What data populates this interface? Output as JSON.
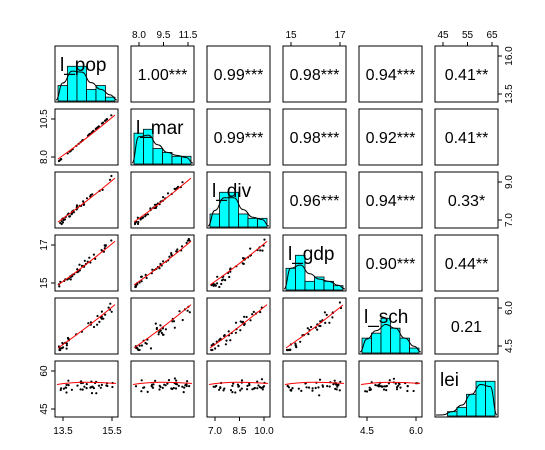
{
  "chart_data": {
    "type": "scatter",
    "title": "",
    "variables": [
      "l_pop",
      "l_mar",
      "l_div",
      "l_gdp",
      "l_sch",
      "lei"
    ],
    "correlations": {
      "pairs": [
        {
          "row": "l_pop",
          "col": "l_mar",
          "label": "1.00***"
        },
        {
          "row": "l_pop",
          "col": "l_div",
          "label": "0.99***"
        },
        {
          "row": "l_pop",
          "col": "l_gdp",
          "label": "0.98***"
        },
        {
          "row": "l_pop",
          "col": "l_sch",
          "label": "0.94***"
        },
        {
          "row": "l_pop",
          "col": "lei",
          "label": "0.41**"
        },
        {
          "row": "l_mar",
          "col": "l_div",
          "label": "0.99***"
        },
        {
          "row": "l_mar",
          "col": "l_gdp",
          "label": "0.98***"
        },
        {
          "row": "l_mar",
          "col": "l_sch",
          "label": "0.92***"
        },
        {
          "row": "l_mar",
          "col": "lei",
          "label": "0.41**"
        },
        {
          "row": "l_div",
          "col": "l_gdp",
          "label": "0.96***"
        },
        {
          "row": "l_div",
          "col": "l_sch",
          "label": "0.94***"
        },
        {
          "row": "l_div",
          "col": "lei",
          "label": "0.33*"
        },
        {
          "row": "l_gdp",
          "col": "l_sch",
          "label": "0.90***"
        },
        {
          "row": "l_gdp",
          "col": "lei",
          "label": "0.44**"
        },
        {
          "row": "l_sch",
          "col": "lei",
          "label": "0.21"
        }
      ]
    },
    "axes": {
      "top": [
        {
          "col": 1,
          "ticks": [
            "8.0",
            "9.5",
            "11.5"
          ]
        },
        {
          "col": 3,
          "ticks": [
            "15",
            "17"
          ]
        },
        {
          "col": 5,
          "ticks": [
            "45",
            "55",
            "65"
          ]
        }
      ],
      "bottom": [
        {
          "col": 0,
          "ticks": [
            "13.5",
            "15.5"
          ]
        },
        {
          "col": 2,
          "ticks": [
            "7.0",
            "8.5",
            "10.0"
          ]
        },
        {
          "col": 4,
          "ticks": [
            "4.5",
            "6.0"
          ]
        }
      ],
      "left": [
        {
          "row": 1,
          "ticks": [
            "8.0",
            "10.5"
          ]
        },
        {
          "row": 3,
          "ticks": [
            "15",
            "17"
          ]
        },
        {
          "row": 5,
          "ticks": [
            "45",
            "60"
          ]
        }
      ],
      "right": [
        {
          "row": 0,
          "ticks": [
            "13.5",
            "16.0"
          ]
        },
        {
          "row": 2,
          "ticks": [
            "7.0",
            "9.0"
          ]
        },
        {
          "row": 4,
          "ticks": [
            "4.5",
            "6.0"
          ]
        }
      ]
    },
    "histograms": [
      {
        "variable": "l_pop",
        "counts": [
          4,
          9,
          9,
          3,
          4,
          1
        ]
      },
      {
        "variable": "l_mar",
        "counts": [
          8,
          9,
          4,
          3,
          2,
          2
        ]
      },
      {
        "variable": "l_div",
        "counts": [
          3,
          8,
          8,
          3,
          2,
          2
        ]
      },
      {
        "variable": "l_gdp",
        "counts": [
          5,
          8,
          2,
          3,
          2,
          1
        ]
      },
      {
        "variable": "l_sch",
        "counts": [
          3,
          4,
          7,
          5,
          3,
          1
        ]
      },
      {
        "variable": "lei",
        "counts": [
          0,
          1,
          2,
          5,
          8,
          8
        ]
      }
    ],
    "colors": {
      "hist_fill": "#00ffff",
      "points": "#000000",
      "smooth_line": "#ff0000",
      "frame": "#000000"
    },
    "grid": false,
    "legend": "none"
  }
}
